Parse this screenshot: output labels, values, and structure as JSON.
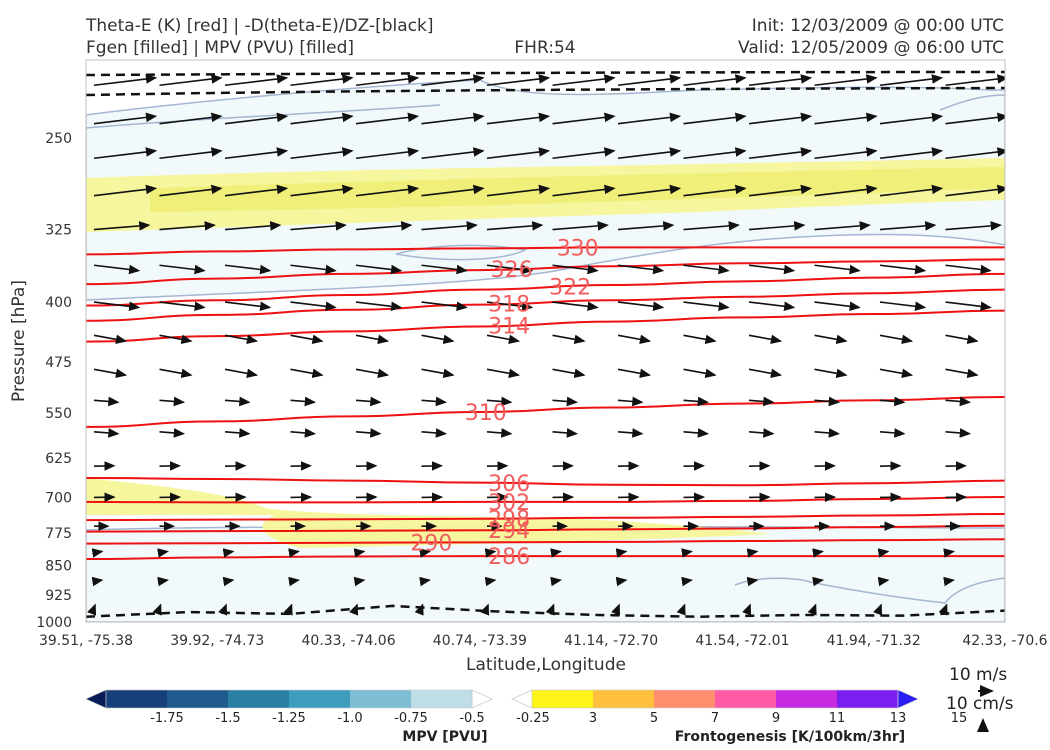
{
  "header": {
    "title_left_1": "Theta-E (K) [red] | -D(theta-E)/DZ-[black]",
    "title_left_2": "Fgen [filled] | MPV (PVU) [filled]",
    "title_center": "FHR:54",
    "title_right_1": "Init: 12/03/2009 @ 00:00 UTC",
    "title_right_2": "Valid: 12/05/2009 @ 06:00 UTC"
  },
  "chart_data": {
    "type": "cross-section",
    "xlabel": "Latitude,Longitude",
    "ylabel": "Pressure [hPa]",
    "x_ticks": [
      "39.51, -75.38",
      "39.92, -74.73",
      "40.33, -74.06",
      "40.74, -73.39",
      "41.14, -72.70",
      "41.54, -72.01",
      "41.94, -71.32",
      "42.33, -70.6"
    ],
    "y_ticks": [
      250,
      325,
      400,
      475,
      550,
      625,
      700,
      775,
      850,
      925,
      1000
    ],
    "ylim": [
      1000,
      200
    ],
    "y_scale": "log",
    "theta_e_contours": [
      {
        "label": "330",
        "p": [
          349,
          346,
          344,
          343,
          342,
          342,
          342,
          342
        ]
      },
      {
        "label": "326",
        "p": [
          380,
          374,
          369,
          365,
          361,
          358,
          356,
          354
        ]
      },
      {
        "label": "322",
        "p": [
          404,
          398,
          392,
          386,
          381,
          377,
          373,
          369
        ]
      },
      {
        "label": "318",
        "p": [
          422,
          415,
          409,
          403,
          398,
          394,
          390,
          386
        ]
      },
      {
        "label": "314",
        "p": [
          448,
          441,
          435,
          429,
          423,
          418,
          414,
          410
        ]
      },
      {
        "label": "310",
        "p": [
          572,
          563,
          555,
          548,
          541,
          535,
          530,
          525
        ]
      },
      {
        "label": "306",
        "p": [
          662,
          664,
          667,
          671,
          675,
          676,
          672,
          667
        ]
      },
      {
        "label": "302",
        "p": [
          709,
          710,
          710,
          709,
          709,
          707,
          703,
          699
        ]
      },
      {
        "label": "298",
        "p": [
          747,
          746,
          745,
          744,
          742,
          740,
          737,
          734
        ]
      },
      {
        "label": "294",
        "p": [
          772,
          771,
          770,
          769,
          767,
          765,
          762,
          759
        ]
      },
      {
        "label": "290",
        "p": [
          799,
          798,
          797,
          796,
          795,
          793,
          791,
          789
        ]
      },
      {
        "label": "286",
        "p": [
          835,
          831,
          829,
          828,
          828,
          828,
          828,
          828
        ]
      }
    ],
    "stability_contour_p": [
      985,
      972,
      977,
      955,
      970,
      980,
      985,
      980,
      982,
      968
    ],
    "quiver_key": {
      "label_1": "10 m/s",
      "label_2": "10 cm/s"
    },
    "mpv_colorbar": {
      "label": "MPV [PVU]",
      "ticks": [
        "-1.75",
        "-1.5",
        "-1.25",
        "-1.0",
        "-0.75",
        "-0.5",
        "-0.25"
      ],
      "colors": [
        "#081d58",
        "#173f7a",
        "#1e5a8c",
        "#2b7fa3",
        "#3e9cbc",
        "#7dbed4",
        "#bedde6",
        "#ffffff"
      ]
    },
    "fgen_colorbar": {
      "label": "Frontogenesis [K/100km/3hr]",
      "ticks": [
        "3",
        "5",
        "7",
        "9",
        "11",
        "13",
        "15"
      ],
      "colors": [
        "#ffffff",
        "#fff41a",
        "#ffc03d",
        "#ff8e6e",
        "#ff5aa6",
        "#c72ae0",
        "#7b1ff0",
        "#2a1df5"
      ]
    }
  }
}
